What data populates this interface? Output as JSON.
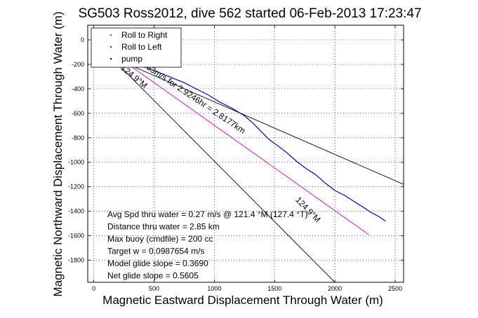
{
  "chart_data": {
    "type": "line",
    "title": "SG503 Ross2012, dive 562 started 06-Feb-2013 17:23:47",
    "xlabel": "Magnetic Eastward Displacement Through Water (m)",
    "ylabel": "Magnetic Northward Displacement Through Water (m)",
    "xlim": [
      -50,
      2570
    ],
    "ylim": [
      -1980,
      120
    ],
    "xticks": [
      0,
      500,
      1000,
      1500,
      2000,
      2500
    ],
    "yticks": [
      0,
      -200,
      -400,
      -600,
      -800,
      -1000,
      -1200,
      -1400,
      -1600,
      -1800
    ],
    "grid": true,
    "legend": {
      "placement": "top-left",
      "entries": [
        {
          "label": "Roll to Right",
          "color": "#00aa55"
        },
        {
          "label": "Roll to Left",
          "color": "#cc0000"
        },
        {
          "label": "pump",
          "color": "#000000"
        }
      ]
    },
    "series": [
      {
        "name": "",
        "color": "#0000cc",
        "x": [
          0,
          30,
          60,
          90,
          120,
          160,
          210,
          280,
          360,
          450,
          550,
          650,
          750,
          850,
          950,
          1050,
          1150,
          1250,
          1320,
          1380,
          1450,
          1520,
          1600,
          1680,
          1760,
          1840,
          1920,
          2000,
          2080,
          2160,
          2240,
          2300,
          2360,
          2420
        ],
        "y": [
          0,
          20,
          15,
          5,
          -30,
          -60,
          -100,
          -150,
          -190,
          -230,
          -270,
          -310,
          -350,
          -400,
          -450,
          -510,
          -560,
          -620,
          -680,
          -740,
          -810,
          -860,
          -920,
          -990,
          -1050,
          -1100,
          -1170,
          -1230,
          -1270,
          -1320,
          -1370,
          -1410,
          -1440,
          -1480
        ]
      },
      {
        "name": "",
        "color": "#cc00cc",
        "x": [
          0,
          2280
        ],
        "y": [
          0,
          -1590
        ]
      },
      {
        "name": "",
        "color": "#000000",
        "x": [
          100,
          2570
        ],
        "y": [
          -120,
          -1180
        ]
      },
      {
        "name": "",
        "color": "#000000",
        "x": [
          0,
          2000
        ],
        "y": [
          0,
          -1980
        ]
      }
    ],
    "annotations": [
      {
        "text": "0.263m/s for 2.9246hr = 2.8177km",
        "x": 350,
        "y": -180
      },
      {
        "text": "124.9°M",
        "x": 220,
        "y": -235
      },
      {
        "text": "124.9°M",
        "x": 1670,
        "y": -1310
      }
    ],
    "stats": [
      "Avg Spd thru water = 0.27 m/s @ 121.4 °M (127.4 °T)",
      "Distance thru water = 2.85 km",
      "Max buoy (cmdfile) = 200 cc",
      "Target w = 0.0987654 m/s",
      "Model glide slope = 0.3690",
      "Net glide slope = 0.5605"
    ]
  }
}
